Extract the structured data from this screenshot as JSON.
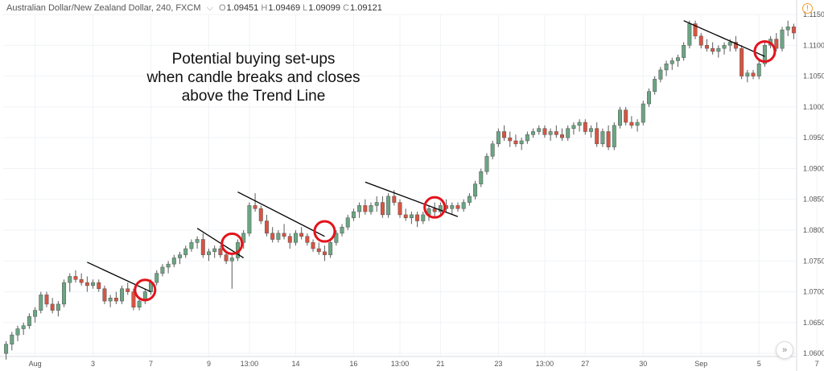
{
  "header": {
    "symbol": "Australian Dollar/New Zealand Dollar, 240, FXCM",
    "dropdown_icon": "chevron-down-icon",
    "open_label": "O",
    "open": "1.09451",
    "high_label": "H",
    "high": "1.09469",
    "low_label": "L",
    "low": "1.09099",
    "close_label": "C",
    "close": "1.09121"
  },
  "annotation": {
    "line1": "Potential buying set-ups",
    "line2": "when candle breaks and closes",
    "line3": "above the Trend Line"
  },
  "icons": {
    "alert": "alert-icon",
    "scroll": "double-chevron-right-icon"
  },
  "colors": {
    "up": "#6ba583",
    "down": "#d75442",
    "wick": "#5b5b5b",
    "grid": "#f0f3f6",
    "axis_text": "#555555",
    "trendline": "#000000",
    "highlight": "#e3131b"
  },
  "chart_data": {
    "type": "candlestick",
    "title": "Australian Dollar/New Zealand Dollar, 240, FXCM",
    "ylim": [
      1.0595,
      1.115
    ],
    "y_ticks": [
      "1.06000",
      "1.06500",
      "1.07000",
      "1.07500",
      "1.08000",
      "1.08500",
      "1.09000",
      "1.09500",
      "1.10000",
      "1.10500",
      "1.11000",
      "1.11500"
    ],
    "x_ticks": [
      {
        "label": "Aug",
        "i": 5
      },
      {
        "label": "3",
        "i": 15
      },
      {
        "label": "7",
        "i": 25
      },
      {
        "label": "9",
        "i": 35
      },
      {
        "label": "13:00",
        "i": 42
      },
      {
        "label": "14",
        "i": 50
      },
      {
        "label": "16",
        "i": 60
      },
      {
        "label": "13:00",
        "i": 68
      },
      {
        "label": "21",
        "i": 75
      },
      {
        "label": "23",
        "i": 85
      },
      {
        "label": "13:00",
        "i": 93
      },
      {
        "label": "27",
        "i": 100
      },
      {
        "label": "30",
        "i": 110
      },
      {
        "label": "Sep",
        "i": 120
      },
      {
        "label": "5",
        "i": 130
      },
      {
        "label": "7",
        "i": 140
      }
    ],
    "grid": true,
    "candles": [
      [
        1.06,
        1.062,
        1.059,
        1.0615
      ],
      [
        1.0615,
        1.0635,
        1.0605,
        1.063
      ],
      [
        1.063,
        1.0645,
        1.062,
        1.064
      ],
      [
        1.064,
        1.065,
        1.063,
        1.0645
      ],
      [
        1.0645,
        1.0665,
        1.064,
        1.066
      ],
      [
        1.066,
        1.0675,
        1.065,
        1.067
      ],
      [
        1.067,
        1.07,
        1.0665,
        1.0695
      ],
      [
        1.0695,
        1.07,
        1.0675,
        1.068
      ],
      [
        1.068,
        1.069,
        1.0665,
        1.067
      ],
      [
        1.067,
        1.0685,
        1.066,
        1.068
      ],
      [
        1.068,
        1.072,
        1.0675,
        1.0715
      ],
      [
        1.0715,
        1.073,
        1.07,
        1.0725
      ],
      [
        1.0725,
        1.0735,
        1.0715,
        1.072
      ],
      [
        1.072,
        1.073,
        1.071,
        1.0715
      ],
      [
        1.0715,
        1.0725,
        1.07,
        1.071
      ],
      [
        1.071,
        1.072,
        1.0705,
        1.0715
      ],
      [
        1.0715,
        1.072,
        1.07,
        1.0705
      ],
      [
        1.0705,
        1.071,
        1.068,
        1.0685
      ],
      [
        1.0685,
        1.0695,
        1.0675,
        1.069
      ],
      [
        1.069,
        1.07,
        1.068,
        1.0685
      ],
      [
        1.0685,
        1.071,
        1.068,
        1.0705
      ],
      [
        1.0705,
        1.0715,
        1.0695,
        1.07
      ],
      [
        1.07,
        1.0705,
        1.067,
        1.0675
      ],
      [
        1.0675,
        1.069,
        1.067,
        1.0685
      ],
      [
        1.0685,
        1.0705,
        1.068,
        1.07
      ],
      [
        1.07,
        1.072,
        1.0695,
        1.0715
      ],
      [
        1.0715,
        1.0735,
        1.071,
        1.073
      ],
      [
        1.073,
        1.0745,
        1.0725,
        1.074
      ],
      [
        1.074,
        1.075,
        1.073,
        1.0745
      ],
      [
        1.0745,
        1.076,
        1.074,
        1.0755
      ],
      [
        1.0755,
        1.0765,
        1.0745,
        1.076
      ],
      [
        1.076,
        1.0775,
        1.0755,
        1.077
      ],
      [
        1.077,
        1.0785,
        1.0765,
        1.078
      ],
      [
        1.078,
        1.079,
        1.077,
        1.0785
      ],
      [
        1.0785,
        1.0795,
        1.0755,
        1.076
      ],
      [
        1.076,
        1.077,
        1.075,
        1.0765
      ],
      [
        1.0765,
        1.0775,
        1.0755,
        1.077
      ],
      [
        1.077,
        1.0775,
        1.0755,
        1.076
      ],
      [
        1.076,
        1.0765,
        1.0745,
        1.075
      ],
      [
        1.075,
        1.076,
        1.0705,
        1.0755
      ],
      [
        1.0755,
        1.0785,
        1.075,
        1.078
      ],
      [
        1.078,
        1.08,
        1.077,
        1.0795
      ],
      [
        1.0795,
        1.0845,
        1.079,
        1.084
      ],
      [
        1.084,
        1.086,
        1.083,
        1.0835
      ],
      [
        1.0835,
        1.084,
        1.081,
        1.0815
      ],
      [
        1.0815,
        1.0825,
        1.079,
        1.0795
      ],
      [
        1.0795,
        1.0805,
        1.078,
        1.0785
      ],
      [
        1.0785,
        1.08,
        1.078,
        1.0795
      ],
      [
        1.0795,
        1.081,
        1.0785,
        1.079
      ],
      [
        1.079,
        1.0795,
        1.077,
        1.078
      ],
      [
        1.078,
        1.08,
        1.0775,
        1.0795
      ],
      [
        1.0795,
        1.0805,
        1.0785,
        1.079
      ],
      [
        1.079,
        1.0795,
        1.0775,
        1.078
      ],
      [
        1.078,
        1.0785,
        1.0765,
        1.077
      ],
      [
        1.077,
        1.078,
        1.076,
        1.0765
      ],
      [
        1.0765,
        1.0775,
        1.075,
        1.076
      ],
      [
        1.076,
        1.0785,
        1.0755,
        1.078
      ],
      [
        1.078,
        1.08,
        1.0775,
        1.0795
      ],
      [
        1.0795,
        1.081,
        1.079,
        1.0805
      ],
      [
        1.0805,
        1.0825,
        1.08,
        1.082
      ],
      [
        1.082,
        1.0835,
        1.0815,
        1.083
      ],
      [
        1.083,
        1.0845,
        1.082,
        1.084
      ],
      [
        1.084,
        1.085,
        1.0825,
        1.083
      ],
      [
        1.083,
        1.0845,
        1.0825,
        1.084
      ],
      [
        1.084,
        1.0855,
        1.083,
        1.0845
      ],
      [
        1.0845,
        1.0855,
        1.082,
        1.0825
      ],
      [
        1.0825,
        1.086,
        1.082,
        1.0855
      ],
      [
        1.0855,
        1.0865,
        1.084,
        1.0845
      ],
      [
        1.0845,
        1.085,
        1.082,
        1.0825
      ],
      [
        1.0825,
        1.0835,
        1.0815,
        1.082
      ],
      [
        1.082,
        1.083,
        1.081,
        1.0825
      ],
      [
        1.0825,
        1.083,
        1.0805,
        1.0815
      ],
      [
        1.0815,
        1.083,
        1.081,
        1.0825
      ],
      [
        1.0825,
        1.084,
        1.0815,
        1.0835
      ],
      [
        1.0835,
        1.0845,
        1.082,
        1.083
      ],
      [
        1.083,
        1.0845,
        1.0825,
        1.084
      ],
      [
        1.084,
        1.085,
        1.083,
        1.0835
      ],
      [
        1.0835,
        1.0845,
        1.0825,
        1.084
      ],
      [
        1.084,
        1.0845,
        1.083,
        1.0835
      ],
      [
        1.0835,
        1.085,
        1.083,
        1.0845
      ],
      [
        1.0845,
        1.086,
        1.084,
        1.0855
      ],
      [
        1.0855,
        1.088,
        1.085,
        1.0875
      ],
      [
        1.0875,
        1.09,
        1.087,
        1.0895
      ],
      [
        1.0895,
        1.0925,
        1.089,
        1.092
      ],
      [
        1.092,
        1.0945,
        1.0915,
        1.094
      ],
      [
        1.094,
        1.0965,
        1.0935,
        1.096
      ],
      [
        1.096,
        1.097,
        1.0945,
        1.095
      ],
      [
        1.095,
        1.096,
        1.0935,
        1.0945
      ],
      [
        1.0945,
        1.0955,
        1.0935,
        1.094
      ],
      [
        1.094,
        1.095,
        1.093,
        1.0945
      ],
      [
        1.0945,
        1.096,
        1.094,
        1.0955
      ],
      [
        1.0955,
        1.0965,
        1.095,
        1.096
      ],
      [
        1.096,
        1.097,
        1.0955,
        1.0965
      ],
      [
        1.0965,
        1.097,
        1.095,
        1.0955
      ],
      [
        1.0955,
        1.0965,
        1.0945,
        1.096
      ],
      [
        1.096,
        1.097,
        1.095,
        1.0955
      ],
      [
        1.0955,
        1.0965,
        1.0945,
        1.095
      ],
      [
        1.095,
        1.097,
        1.0945,
        1.0965
      ],
      [
        1.0965,
        1.0975,
        1.0955,
        1.097
      ],
      [
        1.097,
        1.098,
        1.096,
        1.0975
      ],
      [
        1.0975,
        1.098,
        1.0955,
        1.096
      ],
      [
        1.096,
        1.097,
        1.095,
        1.0965
      ],
      [
        1.0965,
        1.0975,
        1.0935,
        1.094
      ],
      [
        1.094,
        1.0965,
        1.0935,
        1.096
      ],
      [
        1.096,
        1.097,
        1.093,
        1.0935
      ],
      [
        1.0935,
        1.0975,
        1.093,
        1.097
      ],
      [
        1.097,
        1.1,
        1.0965,
        1.0995
      ],
      [
        1.0995,
        1.1,
        1.097,
        1.0975
      ],
      [
        1.0975,
        1.0985,
        1.0965,
        1.097
      ],
      [
        1.097,
        1.098,
        1.096,
        1.0975
      ],
      [
        1.0975,
        1.101,
        1.097,
        1.1005
      ],
      [
        1.1005,
        1.103,
        1.1,
        1.1025
      ],
      [
        1.1025,
        1.105,
        1.102,
        1.1045
      ],
      [
        1.1045,
        1.1065,
        1.104,
        1.106
      ],
      [
        1.106,
        1.1075,
        1.105,
        1.107
      ],
      [
        1.107,
        1.108,
        1.106,
        1.1075
      ],
      [
        1.1075,
        1.1085,
        1.1065,
        1.108
      ],
      [
        1.108,
        1.1105,
        1.1075,
        1.11
      ],
      [
        1.11,
        1.114,
        1.1095,
        1.1135
      ],
      [
        1.1135,
        1.114,
        1.111,
        1.1115
      ],
      [
        1.1115,
        1.112,
        1.1095,
        1.11
      ],
      [
        1.11,
        1.111,
        1.109,
        1.1095
      ],
      [
        1.1095,
        1.1105,
        1.1085,
        1.109
      ],
      [
        1.109,
        1.11,
        1.108,
        1.1095
      ],
      [
        1.1095,
        1.1105,
        1.1085,
        1.11
      ],
      [
        1.11,
        1.111,
        1.109,
        1.1105
      ],
      [
        1.1105,
        1.1115,
        1.109,
        1.1095
      ],
      [
        1.1095,
        1.11,
        1.1045,
        1.105
      ],
      [
        1.105,
        1.106,
        1.104,
        1.1055
      ],
      [
        1.1055,
        1.106,
        1.1045,
        1.105
      ],
      [
        1.105,
        1.1075,
        1.1045,
        1.107
      ],
      [
        1.107,
        1.1105,
        1.1065,
        1.11
      ],
      [
        1.11,
        1.1115,
        1.1095,
        1.111
      ],
      [
        1.111,
        1.112,
        1.109,
        1.1095
      ],
      [
        1.1095,
        1.113,
        1.109,
        1.1125
      ],
      [
        1.1125,
        1.114,
        1.1115,
        1.113
      ],
      [
        1.113,
        1.1135,
        1.111,
        1.112
      ]
    ],
    "trendlines": [
      {
        "from": {
          "i": 14,
          "p": 1.0748
        },
        "to": {
          "i": 25,
          "p": 1.07
        }
      },
      {
        "from": {
          "i": 33,
          "p": 1.0803
        },
        "to": {
          "i": 41,
          "p": 1.0755
        }
      },
      {
        "from": {
          "i": 40,
          "p": 1.0862
        },
        "to": {
          "i": 55,
          "p": 1.079
        }
      },
      {
        "from": {
          "i": 62,
          "p": 1.0878
        },
        "to": {
          "i": 78,
          "p": 1.0822
        }
      },
      {
        "from": {
          "i": 117,
          "p": 1.114
        },
        "to": {
          "i": 131,
          "p": 1.1082
        }
      }
    ],
    "highlights": [
      {
        "i": 24,
        "p": 1.0703
      },
      {
        "i": 39,
        "p": 1.0778
      },
      {
        "i": 55,
        "p": 1.0798
      },
      {
        "i": 74,
        "p": 1.0837
      },
      {
        "i": 131,
        "p": 1.109
      }
    ]
  }
}
